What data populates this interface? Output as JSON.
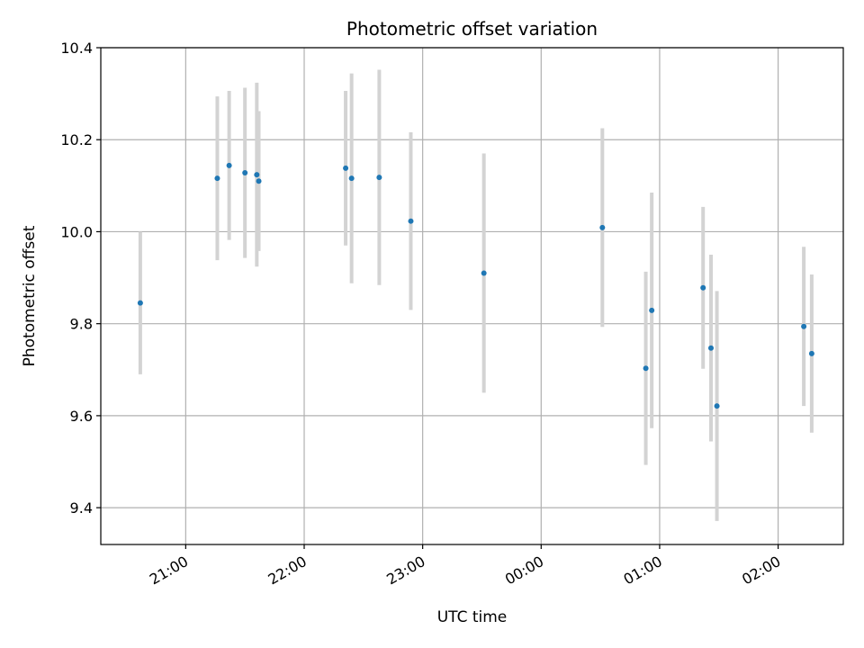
{
  "chart_data": {
    "type": "scatter",
    "title": "Photometric offset variation",
    "xlabel": "UTC time",
    "ylabel": "Photometric offset",
    "x_unit": "UTC time of day (hours past 00:00, day 1 starts at 20:00)",
    "xlim": [
      "20:17",
      "02:33"
    ],
    "ylim": [
      9.32,
      10.4
    ],
    "grid": true,
    "x_ticks": [
      "21:00",
      "22:00",
      "23:00",
      "00:00",
      "01:00",
      "02:00"
    ],
    "y_ticks": [
      "9.4",
      "9.6",
      "9.8",
      "10.0",
      "10.2",
      "10.4"
    ],
    "point_color": "#1f77b4",
    "errorbar_color": "#d3d3d3",
    "series": [
      {
        "points": [
          {
            "t": "20:37",
            "y": 9.845,
            "err": 0.155
          },
          {
            "t": "21:16",
            "y": 10.116,
            "err": 0.178
          },
          {
            "t": "21:22",
            "y": 10.144,
            "err": 0.162
          },
          {
            "t": "21:30",
            "y": 10.128,
            "err": 0.185
          },
          {
            "t": "21:36",
            "y": 10.124,
            "err": 0.2
          },
          {
            "t": "21:37",
            "y": 10.11,
            "err": 0.152
          },
          {
            "t": "22:21",
            "y": 10.138,
            "err": 0.168
          },
          {
            "t": "22:24",
            "y": 10.116,
            "err": 0.228
          },
          {
            "t": "22:38",
            "y": 10.118,
            "err": 0.234
          },
          {
            "t": "22:54",
            "y": 10.023,
            "err": 0.193
          },
          {
            "t": "23:31",
            "y": 9.91,
            "err": 0.26
          },
          {
            "t": "00:31",
            "y": 10.009,
            "err": 0.216
          },
          {
            "t": "00:53",
            "y": 9.703,
            "err": 0.21
          },
          {
            "t": "00:56",
            "y": 9.829,
            "err": 0.256
          },
          {
            "t": "01:22",
            "y": 9.878,
            "err": 0.176
          },
          {
            "t": "01:26",
            "y": 9.747,
            "err": 0.203
          },
          {
            "t": "01:29",
            "y": 9.621,
            "err": 0.25
          },
          {
            "t": "02:13",
            "y": 9.794,
            "err": 0.173
          },
          {
            "t": "02:17",
            "y": 9.735,
            "err": 0.172
          }
        ]
      }
    ]
  }
}
